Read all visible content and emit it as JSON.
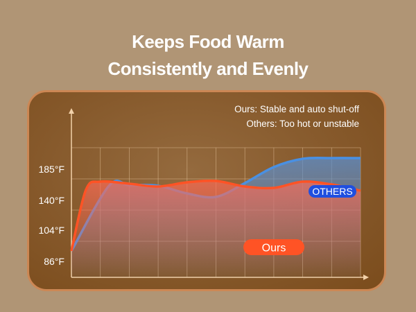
{
  "title": {
    "line1": "Keeps Food Warm",
    "line2": "Consistently and Evenly"
  },
  "notes": {
    "ours": "Ours: Stable and auto shut-off",
    "others": "Others: Too hot or unstable"
  },
  "colors": {
    "ours": "#ff5325",
    "others": "#4a90e2",
    "others_badge": "#1f4fe0",
    "background": "#b09575",
    "card_border": "#cc8754"
  },
  "chart_data": {
    "type": "area",
    "title": "Keeps Food Warm Consistently and Evenly",
    "xlabel": "",
    "ylabel": "",
    "y_ticks": [
      "185°F",
      "140°F",
      "104°F",
      "86°F"
    ],
    "x": [
      0,
      0.5,
      1,
      1.3,
      2,
      3,
      4,
      5,
      6,
      7,
      8,
      9,
      10
    ],
    "series": [
      {
        "name": "Ours",
        "label": "Ours",
        "x": [
          0,
          0.5,
          1,
          2,
          3,
          4,
          5,
          6,
          7,
          8,
          9,
          10
        ],
        "values": [
          92,
          155,
          167,
          164,
          160,
          166,
          168,
          160,
          158,
          167,
          163,
          154
        ]
      },
      {
        "name": "Others",
        "label": "OTHERS",
        "x": [
          0,
          1.3,
          2,
          3,
          4,
          5,
          6,
          7,
          8,
          9,
          10
        ],
        "values": [
          92,
          161,
          162,
          161,
          150,
          145,
          165,
          188,
          200,
          201,
          201
        ]
      }
    ],
    "grid": true
  }
}
